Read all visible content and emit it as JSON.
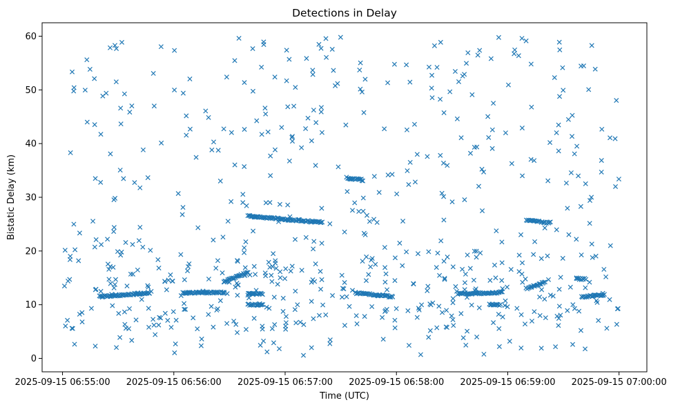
{
  "chart_data": {
    "type": "scatter",
    "title": "Detections in Delay",
    "xlabel": "Time (UTC)",
    "ylabel": "Bistatic Delay (km)",
    "x_ticks": [
      "2025-09-15 06:55:00",
      "2025-09-15 06:56:00",
      "2025-09-15 06:57:00",
      "2025-09-15 06:58:00",
      "2025-09-15 06:59:00",
      "2025-09-15 07:00:00"
    ],
    "y_ticks": [
      "0",
      "10",
      "20",
      "30",
      "40",
      "50",
      "60"
    ],
    "xlim": [
      "2025-09-15 06:54:49",
      "2025-09-15 07:00:15"
    ],
    "ylim": [
      -2.5,
      62.5
    ],
    "grid": false,
    "marker": "x",
    "color": "#1f77b4",
    "x_range": [
      "2025-09-15 06:55:00",
      "2025-09-15 07:00:00"
    ],
    "y_range": [
      0.5,
      60
    ],
    "estimated_point_count": 1100,
    "tracks": [
      {
        "t_start": "2025-09-15 06:55:20",
        "t_end": "2025-09-15 06:55:47",
        "delay_start": 11.5,
        "delay_end": 12.2
      },
      {
        "t_start": "2025-09-15 06:56:05",
        "t_end": "2025-09-15 06:56:27",
        "delay_start": 12.2,
        "delay_end": 12.3
      },
      {
        "t_start": "2025-09-15 06:56:27",
        "t_end": "2025-09-15 06:56:40",
        "delay_start": 14.3,
        "delay_end": 16.0
      },
      {
        "t_start": "2025-09-15 06:56:40",
        "t_end": "2025-09-15 06:56:48",
        "delay_start": 12.0,
        "delay_end": 12.0
      },
      {
        "t_start": "2025-09-15 06:56:40",
        "t_end": "2025-09-15 06:56:48",
        "delay_start": 10.0,
        "delay_end": 10.0
      },
      {
        "t_start": "2025-09-15 06:56:40",
        "t_end": "2025-09-15 06:57:20",
        "delay_start": 26.5,
        "delay_end": 25.3
      },
      {
        "t_start": "2025-09-15 06:57:33",
        "t_end": "2025-09-15 06:57:42",
        "delay_start": 33.6,
        "delay_end": 33.2
      },
      {
        "t_start": "2025-09-15 06:57:38",
        "t_end": "2025-09-15 06:57:58",
        "delay_start": 12.2,
        "delay_end": 11.5
      },
      {
        "t_start": "2025-09-15 06:58:33",
        "t_end": "2025-09-15 06:58:57",
        "delay_start": 12.0,
        "delay_end": 12.3
      },
      {
        "t_start": "2025-09-15 06:58:50",
        "t_end": "2025-09-15 06:58:56",
        "delay_start": 10.0,
        "delay_end": 10.0
      },
      {
        "t_start": "2025-09-15 06:59:10",
        "t_end": "2025-09-15 06:59:17",
        "delay_start": 25.7,
        "delay_end": 25.5
      },
      {
        "t_start": "2025-09-15 06:59:10",
        "t_end": "2025-09-15 06:59:20",
        "delay_start": 13.0,
        "delay_end": 14.2
      },
      {
        "t_start": "2025-09-15 06:59:18",
        "t_end": "2025-09-15 06:59:23",
        "delay_start": 25.3,
        "delay_end": 25.3
      },
      {
        "t_start": "2025-09-15 06:59:37",
        "t_end": "2025-09-15 06:59:42",
        "delay_start": 14.8,
        "delay_end": 14.8
      },
      {
        "t_start": "2025-09-15 06:59:40",
        "t_end": "2025-09-15 06:59:52",
        "delay_start": 11.5,
        "delay_end": 11.8
      }
    ]
  }
}
